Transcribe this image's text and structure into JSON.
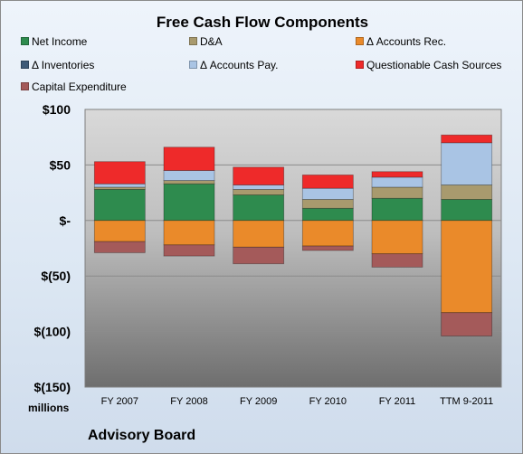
{
  "chart_data": {
    "type": "bar",
    "stacked": true,
    "title": "Free Cash Flow Components",
    "unit_label": "millions",
    "source": "Advisory Board",
    "categories": [
      "FY 2007",
      "FY 2008",
      "FY 2009",
      "FY 2010",
      "FY 2011",
      "TTM 9-2011"
    ],
    "ylim": [
      -150,
      100
    ],
    "yticks": [
      100,
      50,
      0,
      -50,
      -100,
      -150
    ],
    "ytick_labels": [
      "$100",
      "$50",
      "$-",
      "$(50)",
      "$(100)",
      "$(150)"
    ],
    "grid": true,
    "legend_position": "top",
    "series": [
      {
        "name": "Net Income",
        "color": "#2e8b4e",
        "values": [
          28,
          33,
          23,
          11,
          20,
          19
        ]
      },
      {
        "name": "D&A",
        "color": "#a89a6e",
        "values": [
          2,
          3,
          5,
          8,
          10,
          13
        ]
      },
      {
        "name": "Δ Accounts Rec.",
        "color": "#ea8a2a",
        "values": [
          -19,
          -22,
          -24,
          -23,
          -30,
          -83
        ]
      },
      {
        "name": "Δ Inventories",
        "color": "#3e5a78",
        "values": [
          0,
          0,
          0,
          0,
          0,
          0
        ]
      },
      {
        "name": "Δ Accounts Pay.",
        "color": "#a9c4e4",
        "values": [
          3,
          9,
          4,
          10,
          9,
          38
        ]
      },
      {
        "name": "Questionable Cash Sources",
        "color": "#ee2a2a",
        "values": [
          20,
          21,
          16,
          12,
          5,
          7
        ]
      },
      {
        "name": "Capital Expenditure",
        "color": "#a45a5a",
        "values": [
          -10,
          -10,
          -15,
          -4,
          -12,
          -21
        ]
      }
    ]
  }
}
